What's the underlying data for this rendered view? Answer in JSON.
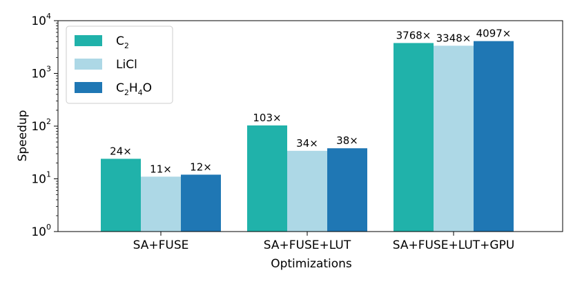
{
  "chart_data": {
    "type": "bar",
    "title": "",
    "xlabel": "Optimizations",
    "ylabel": "Speedup",
    "yscale": "log",
    "ylim": [
      1,
      10000
    ],
    "yticks": [
      {
        "value": 1,
        "base": "10",
        "exp": "0"
      },
      {
        "value": 10,
        "base": "10",
        "exp": "1"
      },
      {
        "value": 100,
        "base": "10",
        "exp": "2"
      },
      {
        "value": 1000,
        "base": "10",
        "exp": "3"
      },
      {
        "value": 10000,
        "base": "10",
        "exp": "4"
      }
    ],
    "categories": [
      "SA+FUSE",
      "SA+FUSE+LUT",
      "SA+FUSE+LUT+GPU"
    ],
    "series": [
      {
        "key": "c2",
        "legend_parts": [
          {
            "t": "C",
            "sub": false
          },
          {
            "t": "2",
            "sub": true
          }
        ],
        "color": "#20b2aa",
        "values": [
          24,
          103,
          3768
        ],
        "labels": [
          "24×",
          "103×",
          "3768×"
        ]
      },
      {
        "key": "licl",
        "legend_parts": [
          {
            "t": "LiCl",
            "sub": false
          }
        ],
        "color": "#add8e6",
        "values": [
          11,
          34,
          3348
        ],
        "labels": [
          "11×",
          "34×",
          "3348×"
        ]
      },
      {
        "key": "c2h4o",
        "legend_parts": [
          {
            "t": "C",
            "sub": false
          },
          {
            "t": "2",
            "sub": true
          },
          {
            "t": "H",
            "sub": false
          },
          {
            "t": "4",
            "sub": true
          },
          {
            "t": "O",
            "sub": false
          }
        ],
        "color": "#1f77b4",
        "values": [
          12,
          38,
          4097
        ],
        "labels": [
          "12×",
          "38×",
          "4097×"
        ]
      }
    ],
    "legend": "top-left",
    "grid": false
  }
}
